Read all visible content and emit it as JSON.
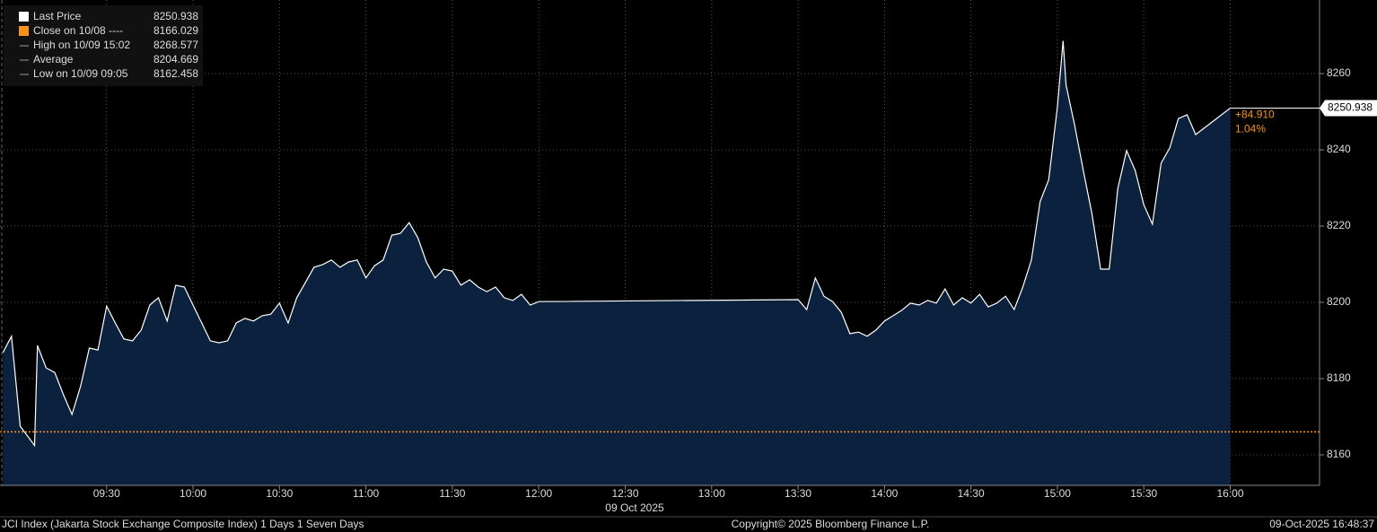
{
  "chart_data": {
    "type": "area",
    "x": [
      "08:54",
      "08:57",
      "09:00",
      "09:03",
      "09:05",
      "09:06",
      "09:09",
      "09:12",
      "09:15",
      "09:18",
      "09:21",
      "09:24",
      "09:27",
      "09:30",
      "09:33",
      "09:36",
      "09:39",
      "09:42",
      "09:45",
      "09:48",
      "09:51",
      "09:54",
      "09:57",
      "10:00",
      "10:03",
      "10:06",
      "10:09",
      "10:12",
      "10:15",
      "10:18",
      "10:21",
      "10:24",
      "10:27",
      "10:30",
      "10:33",
      "10:36",
      "10:39",
      "10:42",
      "10:45",
      "10:48",
      "10:51",
      "10:54",
      "10:57",
      "11:00",
      "11:03",
      "11:06",
      "11:09",
      "11:12",
      "11:15",
      "11:18",
      "11:21",
      "11:24",
      "11:27",
      "11:30",
      "11:33",
      "11:36",
      "11:39",
      "11:42",
      "11:45",
      "11:48",
      "11:51",
      "11:54",
      "11:57",
      "12:00",
      "13:30",
      "13:33",
      "13:36",
      "13:39",
      "13:42",
      "13:45",
      "13:48",
      "13:51",
      "13:54",
      "13:57",
      "14:00",
      "14:03",
      "14:06",
      "14:09",
      "14:12",
      "14:15",
      "14:18",
      "14:21",
      "14:24",
      "14:27",
      "14:30",
      "14:33",
      "14:36",
      "14:39",
      "14:42",
      "14:45",
      "14:48",
      "14:51",
      "14:54",
      "14:57",
      "15:00",
      "15:02",
      "15:03",
      "15:06",
      "15:09",
      "15:12",
      "15:15",
      "15:18",
      "15:21",
      "15:24",
      "15:27",
      "15:30",
      "15:33",
      "15:36",
      "15:39",
      "15:42",
      "15:45",
      "15:48",
      "16:00"
    ],
    "series": [
      {
        "name": "Last Price",
        "color": "#ffffff",
        "fill": "#0b213d",
        "values": [
          8186.8,
          8191.1,
          8167.5,
          8164.5,
          8162.458,
          8188.7,
          8182.8,
          8181.6,
          8175.8,
          8170.6,
          8178.1,
          8188.0,
          8187.5,
          8199.0,
          8194.6,
          8190.4,
          8189.9,
          8192.7,
          8199.3,
          8201.2,
          8195.1,
          8204.5,
          8204.0,
          8199.3,
          8194.6,
          8189.9,
          8189.4,
          8189.9,
          8194.6,
          8195.8,
          8195.1,
          8196.5,
          8196.9,
          8199.8,
          8194.6,
          8201.2,
          8205.2,
          8209.2,
          8209.9,
          8211.1,
          8209.2,
          8210.6,
          8211.1,
          8206.4,
          8209.6,
          8211.1,
          8217.6,
          8218.1,
          8220.9,
          8217.0,
          8210.6,
          8206.4,
          8208.7,
          8208.2,
          8204.5,
          8205.9,
          8204.0,
          8202.8,
          8204.0,
          8201.2,
          8200.5,
          8202.1,
          8199.3,
          8200.2,
          8200.7,
          8198.1,
          8206.4,
          8201.6,
          8200.2,
          8197.4,
          8191.8,
          8192.2,
          8191.1,
          8192.7,
          8195.1,
          8196.5,
          8197.9,
          8199.8,
          8199.3,
          8200.5,
          8199.8,
          8203.5,
          8199.3,
          8201.2,
          8199.8,
          8202.1,
          8198.8,
          8199.8,
          8201.6,
          8198.1,
          8204.0,
          8211.1,
          8226.4,
          8232.2,
          8251.1,
          8268.577,
          8257.0,
          8246.4,
          8234.6,
          8223.3,
          8208.7,
          8208.7,
          8229.9,
          8239.8,
          8234.6,
          8225.6,
          8220.5,
          8236.5,
          8240.5,
          8248.2,
          8249.2,
          8244.0,
          8250.938
        ]
      }
    ],
    "legend_items": [
      {
        "label": "Close on 10/08 ----",
        "value": 8166.029,
        "color": "#f7931e"
      },
      {
        "label": "High on 10/09 15:02",
        "value": 8268.577
      },
      {
        "label": "Average",
        "value": 8204.669
      },
      {
        "label": "Low on 10/09 09:05",
        "value": 8162.458
      }
    ],
    "change_label": "+84.910",
    "change_pct_label": "1.04%",
    "xlim": [
      "08:53",
      "16:31"
    ],
    "xticks": [
      "09:30",
      "10:00",
      "10:30",
      "11:00",
      "11:30",
      "12:00",
      "12:30",
      "13:00",
      "13:30",
      "14:00",
      "14:30",
      "15:00",
      "15:30",
      "16:00"
    ],
    "x_label": "09 Oct 2025",
    "ylim": [
      8152,
      8279.3
    ],
    "yticks": [
      8160,
      8180,
      8200,
      8220,
      8240,
      8260
    ],
    "grid": true,
    "footer": {
      "left": "JCI Index (Jakarta Stock Exchange Composite Index) 1 Days 1 Seven Days",
      "center": "Copyright© 2025 Bloomberg Finance L.P.",
      "right": "09-Oct-2025 16:48:37"
    }
  }
}
